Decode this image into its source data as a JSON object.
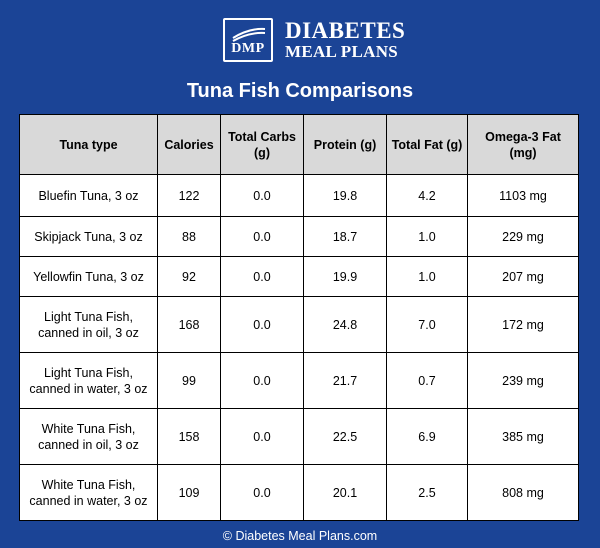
{
  "brand": {
    "abbr": "DMP",
    "line1": "DIABETES",
    "line2": "MEAL PLANS"
  },
  "title": "Tuna Fish Comparisons",
  "table": {
    "headers": [
      "Tuna type",
      "Calories",
      "Total Carbs (g)",
      "Protein (g)",
      "Total Fat (g)",
      "Omega-3 Fat (mg)"
    ],
    "rows": [
      [
        "Bluefin Tuna, 3 oz",
        "122",
        "0.0",
        "19.8",
        "4.2",
        "1103 mg"
      ],
      [
        "Skipjack Tuna, 3 oz",
        "88",
        "0.0",
        "18.7",
        "1.0",
        "229 mg"
      ],
      [
        "Yellowfin Tuna, 3 oz",
        "92",
        "0.0",
        "19.9",
        "1.0",
        "207 mg"
      ],
      [
        "Light Tuna Fish, canned in oil, 3 oz",
        "168",
        "0.0",
        "24.8",
        "7.0",
        "172 mg"
      ],
      [
        "Light Tuna Fish, canned in water, 3 oz",
        "99",
        "0.0",
        "21.7",
        "0.7",
        "239 mg"
      ],
      [
        "White Tuna Fish, canned in oil, 3 oz",
        "158",
        "0.0",
        "22.5",
        "6.9",
        "385 mg"
      ],
      [
        "White Tuna Fish, canned in water, 3 oz",
        "109",
        "0.0",
        "20.1",
        "2.5",
        "808 mg"
      ]
    ]
  },
  "footer": "© Diabetes Meal Plans.com",
  "colors": {
    "background": "#1b4496",
    "header_fill": "#d9d9d9"
  }
}
